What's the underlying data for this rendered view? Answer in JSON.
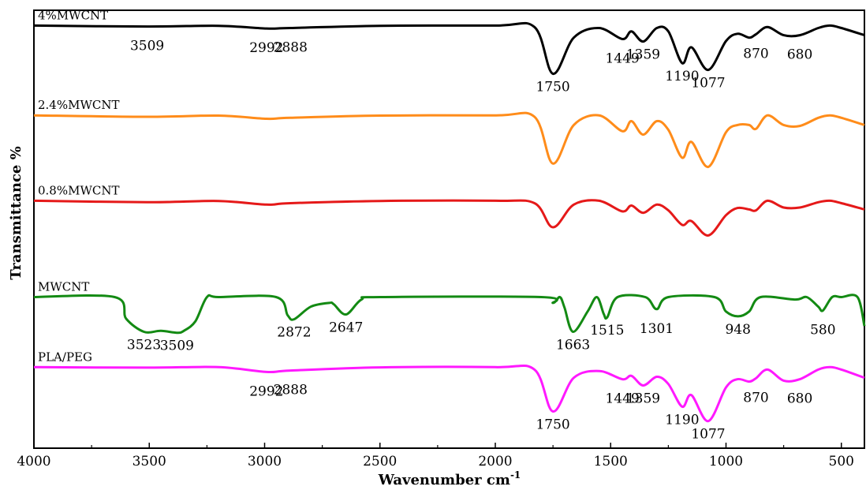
{
  "chart_data": {
    "type": "line",
    "xlabel": "Wavenumber cm",
    "xlabel_sup": "-1",
    "ylabel": "Transmittance %",
    "xlim": [
      4000,
      400
    ],
    "x_ticks": [
      "4000",
      "3500",
      "3000",
      "2500",
      "2000",
      "1500",
      "1000",
      "500"
    ],
    "y_ticks": [],
    "grid": false,
    "legend": "none",
    "series": [
      {
        "name": "4%MWCNT",
        "color": "#000000",
        "baseline": 0.965,
        "amplitude": 0.11,
        "x": [
          4000,
          3509,
          3200,
          2992,
          2888,
          2500,
          2000,
          1830,
          1750,
          1660,
          1550,
          1449,
          1410,
          1359,
          1300,
          1250,
          1190,
          1150,
          1077,
          1000,
          950,
          900,
          870,
          820,
          750,
          680,
          600,
          550,
          500,
          400
        ],
        "y": [
          0.0,
          0.02,
          0.005,
          0.06,
          0.05,
          0.005,
          0.0,
          0.03,
          1.0,
          0.25,
          0.05,
          0.28,
          0.12,
          0.33,
          0.05,
          0.12,
          0.78,
          0.45,
          0.92,
          0.32,
          0.17,
          0.25,
          0.18,
          0.03,
          0.2,
          0.2,
          0.05,
          0.0,
          0.05,
          0.2
        ],
        "peak_labels": [
          {
            "text": "3509",
            "x": 3509
          },
          {
            "text": "2992",
            "x": 2992
          },
          {
            "text": "2888",
            "x": 2888
          },
          {
            "text": "1750",
            "x": 1750
          },
          {
            "text": "1449",
            "x": 1449
          },
          {
            "text": "1359",
            "x": 1359
          },
          {
            "text": "1190",
            "x": 1190
          },
          {
            "text": "1077",
            "x": 1077
          },
          {
            "text": "870",
            "x": 870
          },
          {
            "text": "680",
            "x": 680
          }
        ]
      },
      {
        "name": "2.4%MWCNT",
        "color": "#ff8c1a",
        "baseline": 0.76,
        "amplitude": 0.11,
        "x": [
          4000,
          3509,
          3200,
          2992,
          2888,
          2500,
          2000,
          1830,
          1750,
          1660,
          1550,
          1449,
          1410,
          1359,
          1300,
          1250,
          1190,
          1150,
          1077,
          1000,
          950,
          900,
          870,
          820,
          750,
          680,
          600,
          550,
          500,
          400
        ],
        "y": [
          0.0,
          0.03,
          0.005,
          0.07,
          0.05,
          0.005,
          0.0,
          0.03,
          1.0,
          0.2,
          0.0,
          0.33,
          0.12,
          0.4,
          0.12,
          0.3,
          0.88,
          0.55,
          1.07,
          0.35,
          0.2,
          0.2,
          0.28,
          0.0,
          0.2,
          0.22,
          0.05,
          0.0,
          0.05,
          0.2
        ],
        "peak_labels": []
      },
      {
        "name": "0.8%MWCNT",
        "color": "#e51919",
        "baseline": 0.565,
        "amplitude": 0.11,
        "x": [
          4000,
          3509,
          3200,
          2992,
          2888,
          2500,
          2000,
          1830,
          1750,
          1660,
          1550,
          1449,
          1410,
          1359,
          1300,
          1250,
          1190,
          1150,
          1077,
          1000,
          950,
          900,
          870,
          820,
          750,
          680,
          600,
          550,
          500,
          400
        ],
        "y": [
          0.0,
          0.03,
          0.005,
          0.08,
          0.05,
          0.005,
          0.0,
          0.05,
          0.55,
          0.08,
          0.0,
          0.22,
          0.1,
          0.25,
          0.08,
          0.2,
          0.5,
          0.42,
          0.72,
          0.3,
          0.15,
          0.18,
          0.2,
          0.0,
          0.14,
          0.14,
          0.03,
          0.0,
          0.05,
          0.18
        ],
        "peak_labels": []
      },
      {
        "name": "MWCNT",
        "color": "#138a13",
        "baseline": 0.345,
        "amplitude": 0.11,
        "x": [
          4000,
          3650,
          3600,
          3523,
          3450,
          3380,
          3350,
          3300,
          3250,
          3200,
          2950,
          2900,
          2872,
          2800,
          2720,
          2700,
          2647,
          2580,
          2500,
          1800,
          1750,
          1720,
          1700,
          1663,
          1600,
          1560,
          1530,
          1515,
          1470,
          1350,
          1301,
          1250,
          1050,
          1000,
          948,
          900,
          850,
          700,
          650,
          600,
          580,
          540,
          500,
          430,
          400
        ],
        "y": [
          0.0,
          0.0,
          0.45,
          0.72,
          0.7,
          0.74,
          0.7,
          0.5,
          0.0,
          0.0,
          0.0,
          0.38,
          0.46,
          0.2,
          0.12,
          0.15,
          0.36,
          0.05,
          0.0,
          0.0,
          0.12,
          0.0,
          0.22,
          0.72,
          0.3,
          0.0,
          0.35,
          0.42,
          0.0,
          0.0,
          0.25,
          0.0,
          0.0,
          0.3,
          0.4,
          0.3,
          0.0,
          0.05,
          0.0,
          0.2,
          0.28,
          0.0,
          0.0,
          0.0,
          0.6
        ],
        "peak_labels": [
          {
            "text": "3523",
            "x": 3523
          },
          {
            "text": "3509",
            "x": 3380
          },
          {
            "text": "2872",
            "x": 2872
          },
          {
            "text": "2647",
            "x": 2647
          },
          {
            "text": "1663",
            "x": 1663
          },
          {
            "text": "1515",
            "x": 1515
          },
          {
            "text": "1301",
            "x": 1301
          },
          {
            "text": "948",
            "x": 948
          },
          {
            "text": "580",
            "x": 580
          }
        ]
      },
      {
        "name": "PLA/PEG",
        "color": "#ff19ff",
        "baseline": 0.185,
        "amplitude": 0.11,
        "x": [
          4000,
          3509,
          3200,
          2992,
          2888,
          2500,
          2000,
          1830,
          1750,
          1660,
          1550,
          1449,
          1410,
          1359,
          1300,
          1250,
          1190,
          1150,
          1077,
          1000,
          950,
          900,
          870,
          820,
          750,
          680,
          600,
          550,
          500,
          400
        ],
        "y": [
          0.0,
          0.01,
          0.0,
          0.1,
          0.07,
          0.005,
          0.0,
          0.05,
          0.92,
          0.22,
          0.08,
          0.25,
          0.18,
          0.38,
          0.2,
          0.35,
          0.82,
          0.58,
          1.12,
          0.42,
          0.25,
          0.3,
          0.23,
          0.05,
          0.28,
          0.25,
          0.05,
          0.0,
          0.05,
          0.22
        ],
        "peak_labels": [
          {
            "text": "2992",
            "x": 2992
          },
          {
            "text": "2888",
            "x": 2888
          },
          {
            "text": "1750",
            "x": 1750
          },
          {
            "text": "1449",
            "x": 1449
          },
          {
            "text": "1359",
            "x": 1359
          },
          {
            "text": "1190",
            "x": 1190
          },
          {
            "text": "1077",
            "x": 1077
          },
          {
            "text": "870",
            "x": 870
          },
          {
            "text": "680",
            "x": 680
          }
        ]
      }
    ]
  }
}
